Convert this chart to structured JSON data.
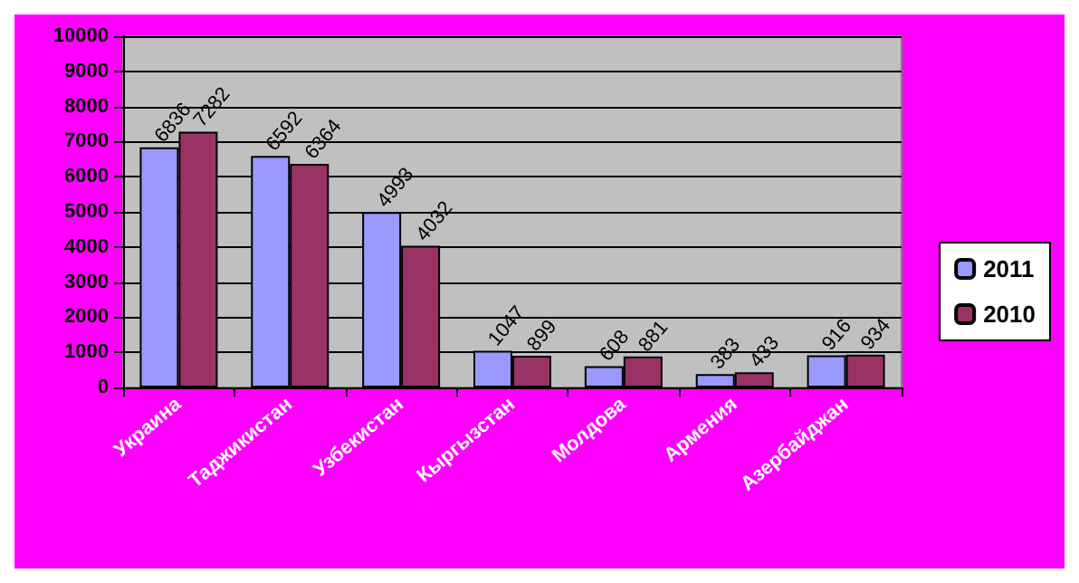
{
  "chart_data": {
    "type": "bar",
    "categories": [
      "Украина",
      "Таджикистан",
      "Узбекистан",
      "Кыргызстан",
      "Молдова",
      "Армения",
      "Азербайджан"
    ],
    "series": [
      {
        "name": "2011",
        "color": "#9999ff",
        "values": [
          6836,
          6592,
          4993,
          1047,
          608,
          383,
          916
        ]
      },
      {
        "name": "2010",
        "color": "#993366",
        "values": [
          7282,
          6364,
          4032,
          899,
          881,
          433,
          934
        ]
      }
    ],
    "ylim": [
      0,
      10000
    ],
    "yticks": [
      0,
      1000,
      2000,
      3000,
      4000,
      5000,
      6000,
      7000,
      8000,
      9000,
      10000
    ],
    "grid": "y",
    "legend": "right",
    "data_labels": true
  }
}
